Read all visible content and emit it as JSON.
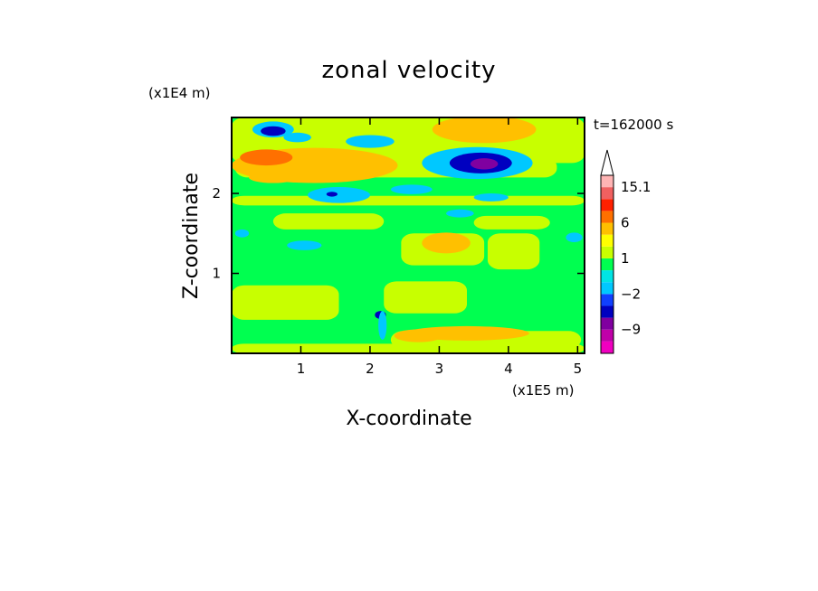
{
  "chart_data": {
    "type": "heatmap",
    "title": "zonal velocity",
    "xlabel": "X-coordinate",
    "ylabel": "Z-coordinate",
    "x_unit": "(x1E5 m)",
    "y_unit": "(x1E4 m)",
    "time_label": "t=162000 s",
    "xlim": [
      0,
      5.1
    ],
    "ylim": [
      0,
      2.95
    ],
    "x_ticks": [
      1,
      2,
      3,
      4,
      5
    ],
    "y_ticks": [
      1,
      2
    ],
    "grid": false,
    "colorbar": {
      "placement": "right",
      "levels": [
        -15,
        -12,
        -9,
        -6,
        -3,
        -2,
        -1,
        0,
        1,
        2,
        3,
        6,
        9,
        12,
        15.1
      ],
      "colors": [
        "#f000c0",
        "#c000a8",
        "#8000a0",
        "#0000c0",
        "#1040ff",
        "#00c8ff",
        "#00e4e4",
        "#00ff50",
        "#c8ff00",
        "#ffff00",
        "#ffc000",
        "#ff7000",
        "#ff2000",
        "#f06060",
        "#ffb4b4"
      ],
      "extend_top": true,
      "tick_labels": [
        {
          "value": 15.1,
          "label": "15.1"
        },
        {
          "value": 6,
          "label": "6"
        },
        {
          "value": 1,
          "label": "1"
        },
        {
          "value": -2,
          "label": "−2"
        },
        {
          "value": -9,
          "label": "−9"
        }
      ]
    },
    "features": [
      {
        "kind": "band",
        "x": [
          0.0,
          5.1
        ],
        "z": [
          0.0,
          0.12
        ],
        "value": 1.5
      },
      {
        "kind": "band",
        "x": [
          0.0,
          5.1
        ],
        "z": [
          1.85,
          1.97
        ],
        "value": 1.5
      },
      {
        "kind": "band",
        "x": [
          0.0,
          5.1
        ],
        "z": [
          2.38,
          2.95
        ],
        "value": 1.5
      },
      {
        "kind": "band",
        "x": [
          0.0,
          1.55
        ],
        "z": [
          0.42,
          0.85
        ],
        "value": 1.5
      },
      {
        "kind": "band",
        "x": [
          2.2,
          3.4
        ],
        "z": [
          0.5,
          0.9
        ],
        "value": 1.5
      },
      {
        "kind": "band",
        "x": [
          2.3,
          5.05
        ],
        "z": [
          0.06,
          0.28
        ],
        "value": 1.5
      },
      {
        "kind": "band",
        "x": [
          2.45,
          3.65
        ],
        "z": [
          1.1,
          1.5
        ],
        "value": 1.5
      },
      {
        "kind": "band",
        "x": [
          3.7,
          4.45
        ],
        "z": [
          1.05,
          1.5
        ],
        "value": 1.5
      },
      {
        "kind": "band",
        "x": [
          0.05,
          4.7
        ],
        "z": [
          2.2,
          2.45
        ],
        "value": 1.5
      },
      {
        "kind": "band",
        "x": [
          0.6,
          2.2
        ],
        "z": [
          1.55,
          1.75
        ],
        "value": 1.5
      },
      {
        "kind": "band",
        "x": [
          3.5,
          4.6
        ],
        "z": [
          1.55,
          1.72
        ],
        "value": 1.5
      },
      {
        "kind": "blob",
        "x": 1.2,
        "z": 2.35,
        "rx": 1.2,
        "rz": 0.22,
        "value": 4
      },
      {
        "kind": "blob",
        "x": 0.5,
        "z": 2.45,
        "rx": 0.38,
        "rz": 0.1,
        "value": 7
      },
      {
        "kind": "blob",
        "x": 3.65,
        "z": 2.8,
        "rx": 0.75,
        "rz": 0.17,
        "value": 4
      },
      {
        "kind": "blob",
        "x": 0.6,
        "z": 2.2,
        "rx": 0.35,
        "rz": 0.07,
        "value": 4
      },
      {
        "kind": "blob",
        "x": 3.1,
        "z": 1.38,
        "rx": 0.35,
        "rz": 0.13,
        "value": 4
      },
      {
        "kind": "blob",
        "x": 3.4,
        "z": 0.25,
        "rx": 0.9,
        "rz": 0.09,
        "value": 4
      },
      {
        "kind": "blob",
        "x": 2.7,
        "z": 0.22,
        "rx": 0.35,
        "rz": 0.08,
        "value": 4
      },
      {
        "kind": "blob",
        "x": 3.55,
        "z": 2.38,
        "rx": 0.8,
        "rz": 0.2,
        "value": -1.5
      },
      {
        "kind": "blob",
        "x": 3.6,
        "z": 2.38,
        "rx": 0.45,
        "rz": 0.13,
        "value": -4
      },
      {
        "kind": "blob",
        "x": 3.65,
        "z": 2.37,
        "rx": 0.2,
        "rz": 0.07,
        "value": -7
      },
      {
        "kind": "blob",
        "x": 0.6,
        "z": 2.8,
        "rx": 0.3,
        "rz": 0.1,
        "value": -1.5
      },
      {
        "kind": "blob",
        "x": 0.6,
        "z": 2.78,
        "rx": 0.18,
        "rz": 0.06,
        "value": -4
      },
      {
        "kind": "blob",
        "x": 1.55,
        "z": 1.98,
        "rx": 0.45,
        "rz": 0.1,
        "value": -1.5
      },
      {
        "kind": "blob",
        "x": 1.45,
        "z": 1.99,
        "rx": 0.08,
        "rz": 0.03,
        "value": -4
      },
      {
        "kind": "blob",
        "x": 2.0,
        "z": 2.65,
        "rx": 0.35,
        "rz": 0.08,
        "value": -1.5
      },
      {
        "kind": "blob",
        "x": 0.95,
        "z": 2.7,
        "rx": 0.2,
        "rz": 0.06,
        "value": -1.5
      },
      {
        "kind": "blob",
        "x": 2.6,
        "z": 2.05,
        "rx": 0.3,
        "rz": 0.06,
        "value": -1.5
      },
      {
        "kind": "blob",
        "x": 3.75,
        "z": 1.95,
        "rx": 0.25,
        "rz": 0.05,
        "value": -1.5
      },
      {
        "kind": "blob",
        "x": 3.3,
        "z": 1.75,
        "rx": 0.2,
        "rz": 0.05,
        "value": -1.5
      },
      {
        "kind": "blob",
        "x": 1.05,
        "z": 1.35,
        "rx": 0.25,
        "rz": 0.06,
        "value": -1.5
      },
      {
        "kind": "blob",
        "x": 0.15,
        "z": 1.5,
        "rx": 0.1,
        "rz": 0.05,
        "value": -1.5
      },
      {
        "kind": "blob",
        "x": 4.95,
        "z": 1.45,
        "rx": 0.12,
        "rz": 0.06,
        "value": -1.5
      },
      {
        "kind": "blob",
        "x": 2.15,
        "z": 0.48,
        "rx": 0.08,
        "rz": 0.05,
        "value": -4
      },
      {
        "kind": "blob",
        "x": 2.18,
        "z": 0.35,
        "rx": 0.06,
        "rz": 0.18,
        "value": -1.5
      }
    ]
  }
}
